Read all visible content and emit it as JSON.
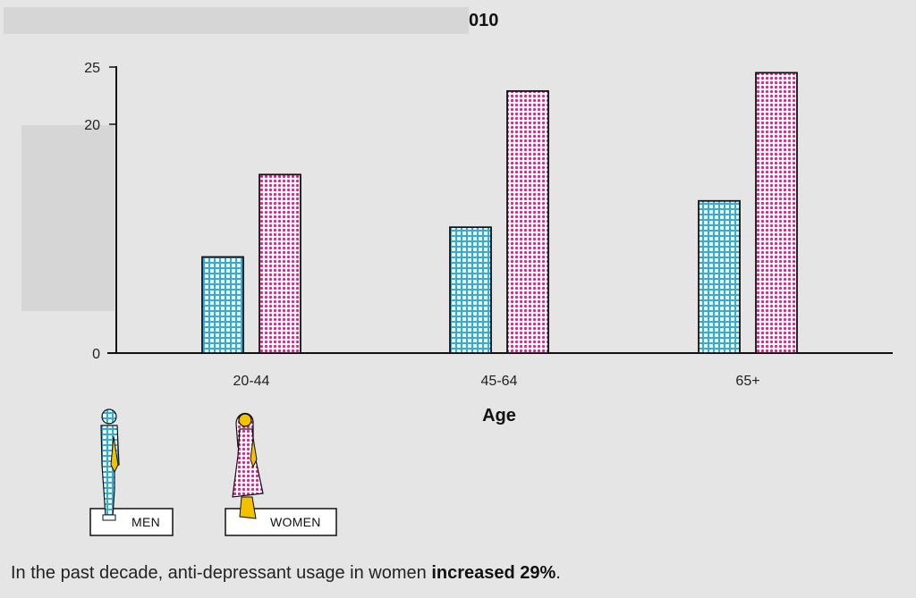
{
  "header": {
    "title_fragment": "010"
  },
  "colors": {
    "men": "#29aee6",
    "women": "#e8208e",
    "background": "#e5e5e5",
    "redaction": "#d6d6d6"
  },
  "legend": {
    "men_label": "MEN",
    "women_label": "WOMEN",
    "men_icon": "man-figure-icon",
    "women_icon": "woman-figure-icon"
  },
  "caption": {
    "prefix": "In the past decade, anti-depressant usage in women ",
    "emphasis": "increased 29%",
    "suffix": "."
  },
  "chart_data": {
    "type": "bar",
    "title": "",
    "xlabel": "Age",
    "ylabel": "",
    "categories": [
      "20-44",
      "45-64",
      "65+"
    ],
    "series": [
      {
        "name": "MEN",
        "values": [
          8.4,
          11.0,
          13.3
        ]
      },
      {
        "name": "WOMEN",
        "values": [
          15.6,
          22.9,
          24.5
        ]
      }
    ],
    "ylim": [
      0,
      25
    ],
    "y_ticks": [
      {
        "value": 0,
        "label": "0"
      },
      {
        "value": 20,
        "label": "20"
      },
      {
        "value": 25,
        "label": "25"
      }
    ],
    "grid": false,
    "legend_placement": "bottom-left"
  }
}
